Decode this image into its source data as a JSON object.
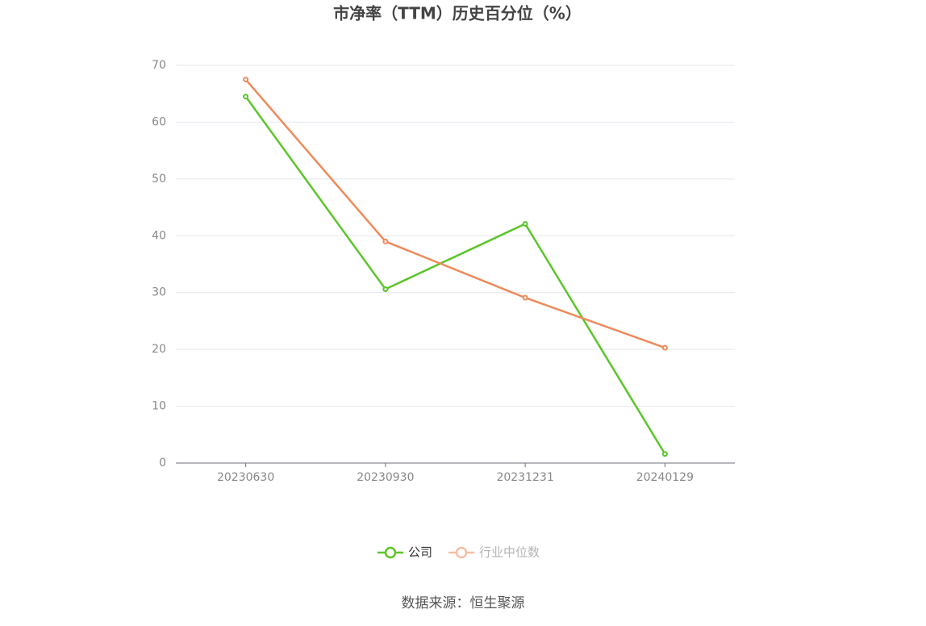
{
  "chart_data": {
    "type": "line",
    "title": "市净率（TTM）历史百分位（%）",
    "categories": [
      "20230630",
      "20230930",
      "20231231",
      "20240129"
    ],
    "series": [
      {
        "name": "公司",
        "color": "#5cc52a",
        "values": [
          64.5,
          30.6,
          42.1,
          1.6
        ]
      },
      {
        "name": "行业中位数",
        "color": "#ef8a5a",
        "values": [
          67.5,
          39.0,
          29.1,
          20.3
        ]
      }
    ],
    "ylim": [
      0,
      70
    ],
    "yticks": [
      0,
      10,
      20,
      30,
      40,
      50,
      60,
      70
    ],
    "grid": true,
    "legend": "bottom",
    "source": "数据来源：恒生聚源"
  }
}
